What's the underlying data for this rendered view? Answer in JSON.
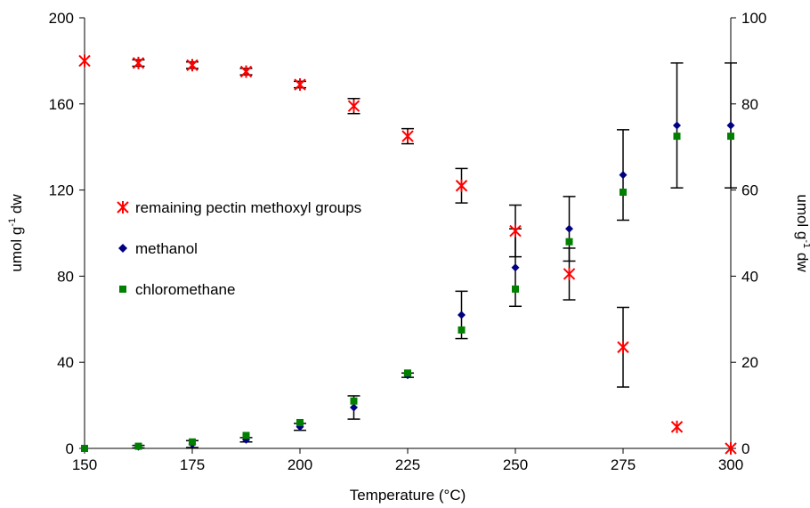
{
  "chart_data": {
    "type": "scatter",
    "xlabel": "Temperature (°C)",
    "ylabel_left": {
      "main": "umol g",
      "sup": "-1",
      "rest": " dw"
    },
    "ylabel_right": {
      "main": "umol g",
      "sup": "-1",
      "rest": " dw"
    },
    "xlim": [
      150,
      300
    ],
    "ylim_left": [
      0,
      200
    ],
    "ylim_right": [
      0,
      100
    ],
    "x_ticks": [
      150,
      175,
      200,
      225,
      250,
      275,
      300
    ],
    "y_ticks_left": [
      0,
      40,
      80,
      120,
      160,
      200
    ],
    "y_ticks_right": [
      0,
      20,
      40,
      60,
      80,
      100
    ],
    "grid": false,
    "legend_position": "center-left",
    "series": [
      {
        "name": "remaining pectin methoxyl groups",
        "axis": "left",
        "marker": "asterisk",
        "color": "#ff0000",
        "points": [
          {
            "x": 150,
            "y": 180,
            "err": 0
          },
          {
            "x": 162.5,
            "y": 179,
            "err": 1.5
          },
          {
            "x": 175,
            "y": 178,
            "err": 1.5
          },
          {
            "x": 187.5,
            "y": 175,
            "err": 1.5
          },
          {
            "x": 200,
            "y": 169,
            "err": 1.5
          },
          {
            "x": 212.5,
            "y": 159,
            "err": 3.5
          },
          {
            "x": 225,
            "y": 145,
            "err": 3.5
          },
          {
            "x": 237.5,
            "y": 122,
            "err": 8
          },
          {
            "x": 250,
            "y": 101,
            "err": 12
          },
          {
            "x": 262.5,
            "y": 81,
            "err": 12
          },
          {
            "x": 275,
            "y": 47,
            "err": 18.5
          },
          {
            "x": 287.5,
            "y": 10,
            "err": 0
          },
          {
            "x": 300,
            "y": 0,
            "err": 0
          }
        ]
      },
      {
        "name": "methanol",
        "axis": "right",
        "marker": "diamond",
        "color": "#000080",
        "points": [
          {
            "x": 150,
            "y": 0,
            "err": 0
          },
          {
            "x": 162.5,
            "y": 0.4,
            "err": 0.3
          },
          {
            "x": 175,
            "y": 1,
            "err": 0.8
          },
          {
            "x": 187.5,
            "y": 2,
            "err": 0.5
          },
          {
            "x": 200,
            "y": 5,
            "err": 0.8
          },
          {
            "x": 212.5,
            "y": 9.5,
            "err": 2.7
          },
          {
            "x": 225,
            "y": 17,
            "err": 0.5
          },
          {
            "x": 237.5,
            "y": 31,
            "err": 5.5
          },
          {
            "x": 250,
            "y": 42,
            "err": 9
          },
          {
            "x": 262.5,
            "y": 51,
            "err": 7.5
          },
          {
            "x": 275,
            "y": 63.5,
            "err": 10.5
          },
          {
            "x": 287.5,
            "y": 75,
            "err": 14.5
          },
          {
            "x": 300,
            "y": 75,
            "err": 14.5
          }
        ]
      },
      {
        "name": "chloromethane",
        "axis": "right",
        "marker": "square",
        "color": "#008000",
        "points": [
          {
            "x": 150,
            "y": 0,
            "err": 0
          },
          {
            "x": 162.5,
            "y": 0.5,
            "err": 0
          },
          {
            "x": 175,
            "y": 1.5,
            "err": 0
          },
          {
            "x": 187.5,
            "y": 3,
            "err": 0
          },
          {
            "x": 200,
            "y": 6,
            "err": 0
          },
          {
            "x": 212.5,
            "y": 11,
            "err": 0
          },
          {
            "x": 225,
            "y": 17.5,
            "err": 0
          },
          {
            "x": 237.5,
            "y": 27.5,
            "err": 0
          },
          {
            "x": 250,
            "y": 37,
            "err": 0
          },
          {
            "x": 262.5,
            "y": 48,
            "err": 0
          },
          {
            "x": 275,
            "y": 59.5,
            "err": 0
          },
          {
            "x": 287.5,
            "y": 72.5,
            "err": 0
          },
          {
            "x": 300,
            "y": 72.5,
            "err": 0
          }
        ]
      }
    ]
  }
}
